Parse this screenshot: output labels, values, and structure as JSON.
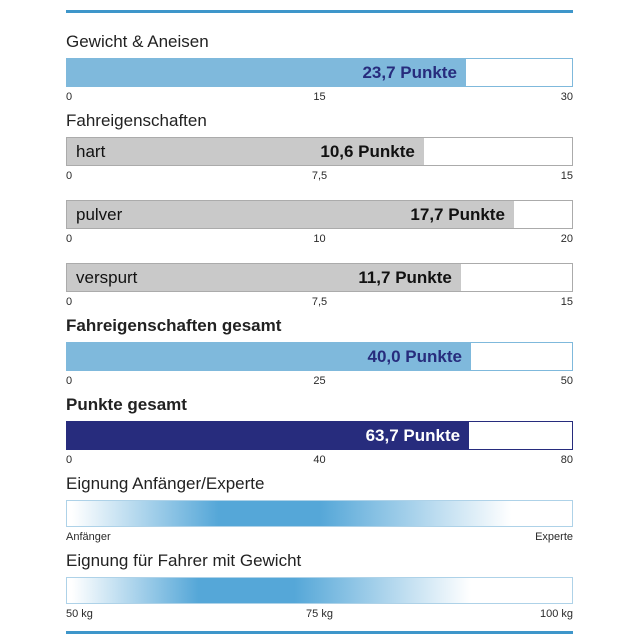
{
  "colors": {
    "blue_fill": "#7fb9dc",
    "navy": "#272c7d",
    "gray_fill": "#c9c9c9",
    "gray_border": "#ababab",
    "rule": "#3e96ca",
    "grad_border": "#aed2e8"
  },
  "chart_data": {
    "type": "bar",
    "orientation": "horizontal",
    "bars": [
      {
        "title": "Gewicht & Aneisen",
        "bar_label": "",
        "value": 23.7,
        "max": 30,
        "value_text": "23,7 Punkte",
        "ticks": [
          "0",
          "15",
          "30"
        ],
        "variant": "blue"
      },
      {
        "title": "Fahreigenschaften",
        "bar_label": "hart",
        "value": 10.6,
        "max": 15,
        "value_text": "10,6 Punkte",
        "ticks": [
          "0",
          "7,5",
          "15"
        ],
        "variant": "gray"
      },
      {
        "title": "",
        "bar_label": "pulver",
        "value": 17.7,
        "max": 20,
        "value_text": "17,7 Punkte",
        "ticks": [
          "0",
          "10",
          "20"
        ],
        "variant": "gray"
      },
      {
        "title": "",
        "bar_label": "verspurt",
        "value": 11.7,
        "max": 15,
        "value_text": "11,7 Punkte",
        "ticks": [
          "0",
          "7,5",
          "15"
        ],
        "variant": "gray"
      },
      {
        "title": "Fahreigenschaften gesamt",
        "bar_label": "",
        "value": 40.0,
        "max": 50,
        "value_text": "40,0 Punkte",
        "ticks": [
          "0",
          "25",
          "50"
        ],
        "variant": "blue"
      },
      {
        "title": "Punkte gesamt",
        "bar_label": "",
        "value": 63.7,
        "max": 80,
        "value_text": "63,7 Punkte",
        "ticks": [
          "0",
          "40",
          "80"
        ],
        "variant": "navy"
      }
    ],
    "gradient_scales": [
      {
        "title": "Eignung Anfänger/Experte",
        "label_left": "Anfänger",
        "label_mid": "",
        "label_right": "Experte",
        "stops": [
          [
            "#ffffff",
            1
          ],
          [
            "#55a7d8",
            30
          ],
          [
            "#55a7d8",
            50
          ],
          [
            "#ffffff",
            88
          ]
        ]
      },
      {
        "title": "Eignung für Fahrer mit Gewicht",
        "label_left": "50 kg",
        "label_mid": "75 kg",
        "label_right": "100 kg",
        "stops": [
          [
            "#ffffff",
            1
          ],
          [
            "#55a7d8",
            26
          ],
          [
            "#55a7d8",
            45
          ],
          [
            "#ffffff",
            80
          ]
        ]
      }
    ]
  }
}
